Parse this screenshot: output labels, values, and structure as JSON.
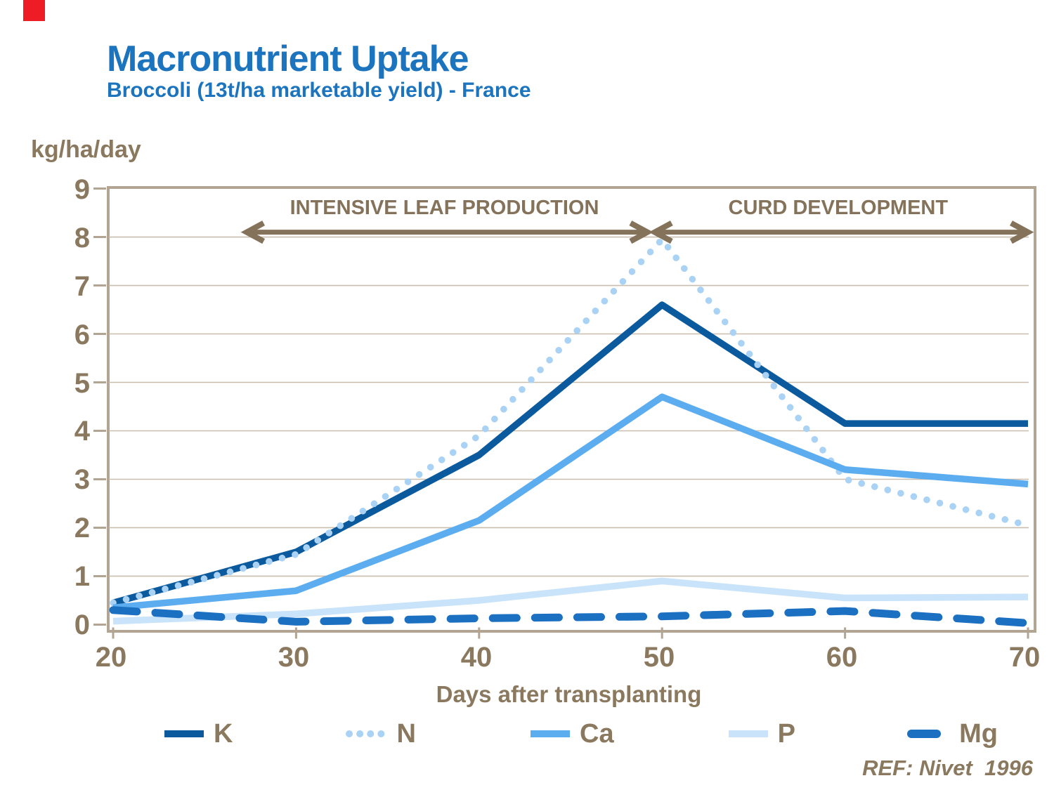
{
  "page": {
    "red_marker_color": "#EE1C25",
    "background": "#FFFFFF"
  },
  "header": {
    "title": "Macronutrient Uptake",
    "subtitle": "Broccoli (13t/ha marketable yield) -  France",
    "title_color": "#1B74BD"
  },
  "axis_unit_label": "kg/ha/day",
  "chart_data": {
    "type": "line",
    "title": "Macronutrient Uptake",
    "subtitle": "Broccoli (13t/ha marketable yield) - France",
    "xlabel": "Days after transplanting",
    "ylabel": "kg/ha/day",
    "x": [
      20,
      30,
      40,
      50,
      60,
      70
    ],
    "x_ticks": [
      "20",
      "30",
      "40",
      "50",
      "60",
      "70"
    ],
    "y_ticks": [
      "0",
      "1",
      "2",
      "3",
      "4",
      "5",
      "6",
      "7",
      "8",
      "9"
    ],
    "xlim": [
      20,
      70
    ],
    "ylim": [
      0,
      9
    ],
    "grid": "horizontal",
    "gridline_color": "#C9BDAD",
    "frame_color": "#B3A593",
    "legend_position": "bottom",
    "series": [
      {
        "name": "K",
        "style": "solid",
        "color": "#0B5A9D",
        "values": [
          0.45,
          1.5,
          3.5,
          6.6,
          4.15,
          4.15
        ]
      },
      {
        "name": "N",
        "style": "dotted",
        "color": "#A9D2F4",
        "values": [
          0.45,
          1.45,
          3.9,
          7.95,
          3.0,
          2.05
        ]
      },
      {
        "name": "Ca",
        "style": "solid",
        "color": "#5CADF0",
        "values": [
          0.35,
          0.7,
          2.15,
          4.7,
          3.2,
          2.9
        ]
      },
      {
        "name": "P",
        "style": "solid",
        "color": "#C8E3FA",
        "values": [
          0.07,
          0.22,
          0.5,
          0.9,
          0.55,
          0.57
        ]
      },
      {
        "name": "Mg",
        "style": "dashed",
        "color": "#1C70C2",
        "values": [
          0.3,
          0.06,
          0.13,
          0.17,
          0.28,
          0.03
        ]
      }
    ],
    "annotations": [
      {
        "label": "INTENSIVE LEAF PRODUCTION",
        "x_start": 27.3,
        "x_end": 49.2,
        "y": 8.1,
        "color": "#84735A"
      },
      {
        "label": "CURD DEVELOPMENT",
        "x_start": 49.6,
        "x_end": 70.0,
        "y": 8.1,
        "color": "#84735A"
      }
    ]
  },
  "footer": {
    "ref": "REF: Nivet  1996"
  },
  "colors": {
    "text_brown": "#8A795E",
    "annotation_brown": "#84735A"
  }
}
